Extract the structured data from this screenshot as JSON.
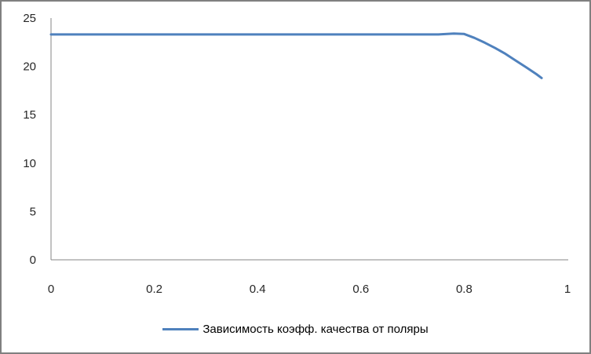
{
  "frame": {
    "background": "#ffffff",
    "border_color": "#808080"
  },
  "chart_data": {
    "type": "line",
    "title": "",
    "xlabel": "",
    "ylabel": "",
    "xlim": [
      0,
      1
    ],
    "ylim": [
      0,
      25
    ],
    "x_ticks": [
      0,
      0.2,
      0.4,
      0.6,
      0.8,
      1
    ],
    "x_tick_labels": [
      "0",
      "0.2",
      "0.4",
      "0.6",
      "0.8",
      "1"
    ],
    "y_ticks": [
      0,
      5,
      10,
      15,
      20,
      25
    ],
    "y_tick_labels": [
      "0",
      "5",
      "10",
      "15",
      "20",
      "25"
    ],
    "grid": false,
    "smoothed": true,
    "axis_color": "#868686",
    "tick_label_color": "#262626",
    "legend_position": "bottom-center",
    "series": [
      {
        "name": "Зависимость коэфф. качества от поляры",
        "color": "#4F81BD",
        "line_width": 3,
        "x": [
          0,
          0.05,
          0.1,
          0.15,
          0.2,
          0.25,
          0.3,
          0.35,
          0.4,
          0.45,
          0.5,
          0.55,
          0.6,
          0.65,
          0.7,
          0.75,
          0.78,
          0.8,
          0.82,
          0.84,
          0.86,
          0.88,
          0.9,
          0.92,
          0.94,
          0.95
        ],
        "y": [
          23.3,
          23.3,
          23.3,
          23.3,
          23.3,
          23.3,
          23.3,
          23.3,
          23.3,
          23.3,
          23.3,
          23.3,
          23.3,
          23.3,
          23.3,
          23.3,
          23.4,
          23.35,
          22.95,
          22.45,
          21.9,
          21.3,
          20.6,
          19.9,
          19.2,
          18.8
        ]
      }
    ]
  }
}
